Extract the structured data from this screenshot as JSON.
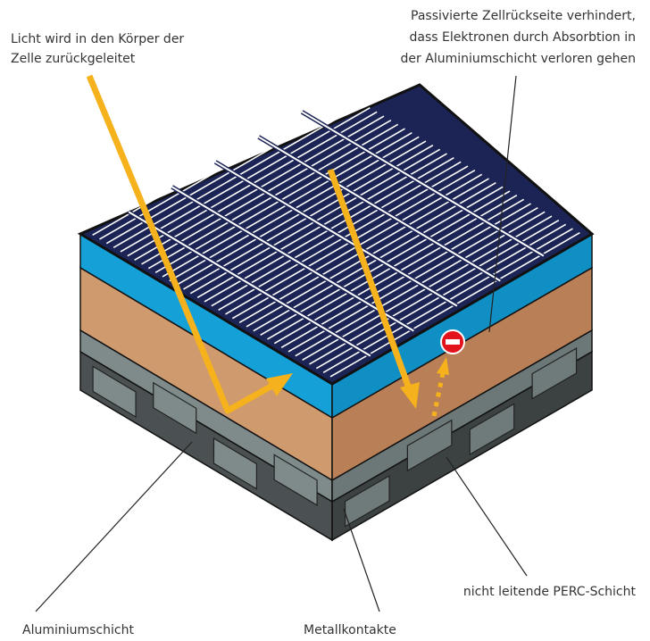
{
  "labels": {
    "light": [
      "Licht wird in den Körper der",
      "Zelle zurückgeleitet"
    ],
    "passivated": [
      "Passivierte Zellrückseite verhindert,",
      "dass Elektronen durch Absorbtion in",
      "der Aluminiumschicht verloren gehen"
    ],
    "perc": "nicht leitende PERC-Schicht",
    "aluminium": "Aluminiumschicht",
    "contacts": "Metallkontakte"
  }
}
